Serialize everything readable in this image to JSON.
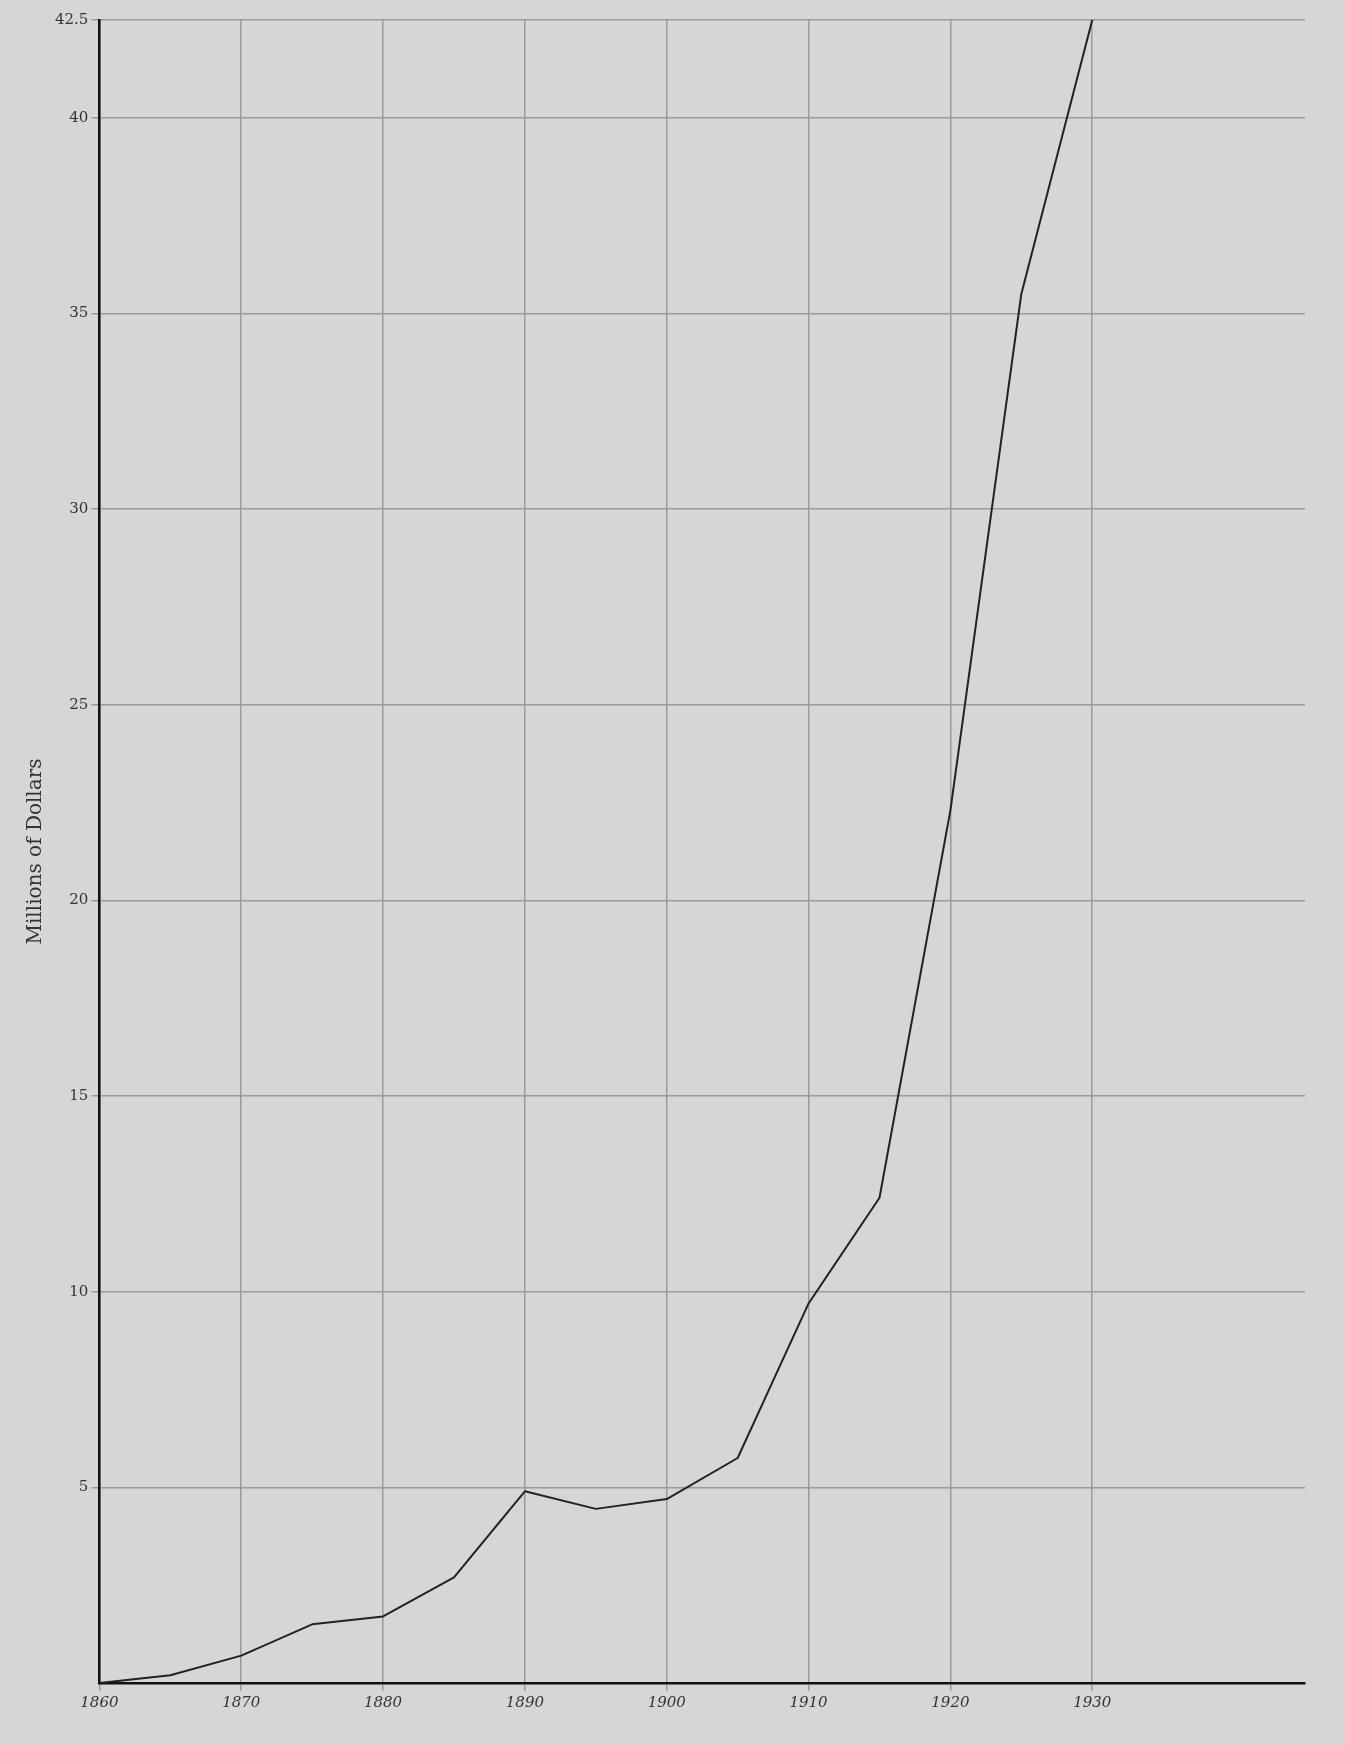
{
  "chart_data": {
    "type": "line",
    "ylabel": "Millions of Dollars",
    "x": [
      1860,
      1865,
      1870,
      1875,
      1880,
      1885,
      1890,
      1895,
      1900,
      1905,
      1910,
      1915,
      1920,
      1925,
      1930
    ],
    "series": [
      {
        "color": "#222222",
        "values": [
          0,
          0.2,
          0.7,
          1.5,
          1.7,
          2.7,
          4.9,
          4.45,
          4.7,
          5.75,
          9.7,
          12.4,
          22.3,
          35.5,
          42.5
        ]
      }
    ],
    "xlim": [
      1860,
      1945
    ],
    "xticks": [
      1860,
      1870,
      1880,
      1890,
      1900,
      1910,
      1920,
      1930
    ],
    "ylim": [
      0,
      42.5
    ],
    "yticks": [
      5,
      10,
      15,
      20,
      25,
      30,
      35,
      40,
      42.5
    ],
    "grid": true,
    "legend": false,
    "marker": "none",
    "line_style": "solid"
  }
}
